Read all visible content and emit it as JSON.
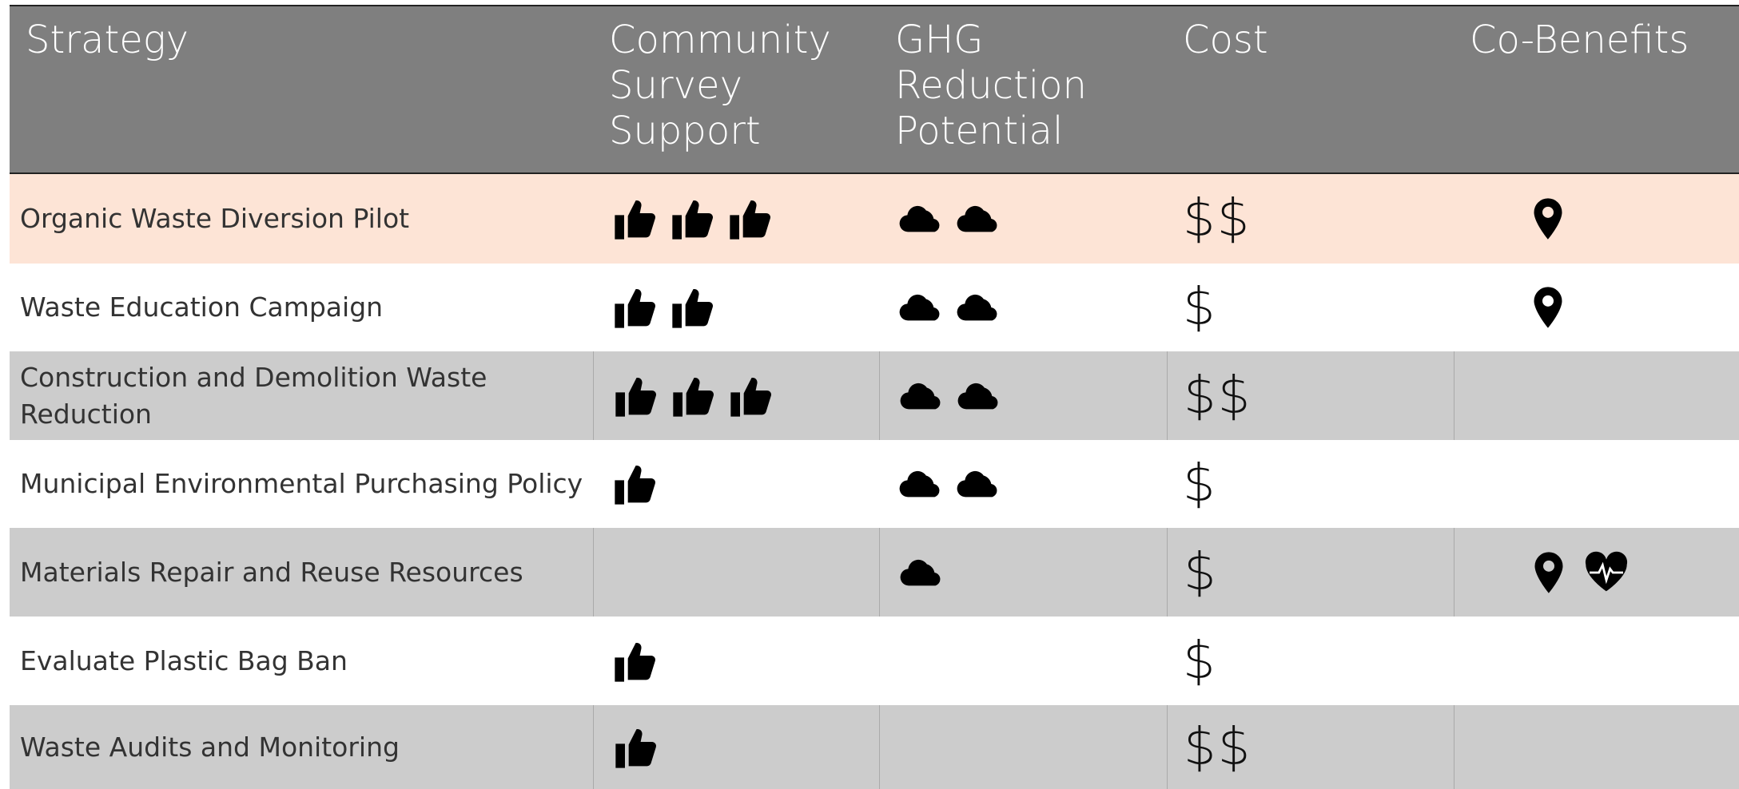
{
  "header": {
    "strategy": "Strategy",
    "survey_support": "Community Survey Support",
    "ghg_reduction": "GHG Reduction Potential",
    "cost": "Cost",
    "co_benefits": "Co-Benefits"
  },
  "rows": [
    {
      "strategy": "Organic Waste Diversion Pilot",
      "survey_support": 3,
      "ghg_reduction": 2,
      "cost": "$$",
      "co_benefits": {
        "location": 1,
        "health": 0
      }
    },
    {
      "strategy": "Waste Education Campaign",
      "survey_support": 2,
      "ghg_reduction": 2,
      "cost": "$",
      "co_benefits": {
        "location": 1,
        "health": 0
      }
    },
    {
      "strategy": "Construction and Demolition Waste Reduction",
      "survey_support": 3,
      "ghg_reduction": 2,
      "cost": "$$",
      "co_benefits": {
        "location": 0,
        "health": 0
      }
    },
    {
      "strategy": "Municipal Environmental Purchasing Policy",
      "survey_support": 1,
      "ghg_reduction": 2,
      "cost": "$",
      "co_benefits": {
        "location": 0,
        "health": 0
      }
    },
    {
      "strategy": "Materials Repair and Reuse Resources",
      "survey_support": 0,
      "ghg_reduction": 1,
      "cost": "$",
      "co_benefits": {
        "location": 1,
        "health": 1
      }
    },
    {
      "strategy": "Evaluate Plastic Bag Ban",
      "survey_support": 1,
      "ghg_reduction": 0,
      "cost": "$",
      "co_benefits": {
        "location": 0,
        "health": 0
      }
    },
    {
      "strategy": "Waste Audits and Monitoring",
      "survey_support": 1,
      "ghg_reduction": 0,
      "cost": "$$",
      "co_benefits": {
        "location": 0,
        "health": 0
      }
    }
  ]
}
